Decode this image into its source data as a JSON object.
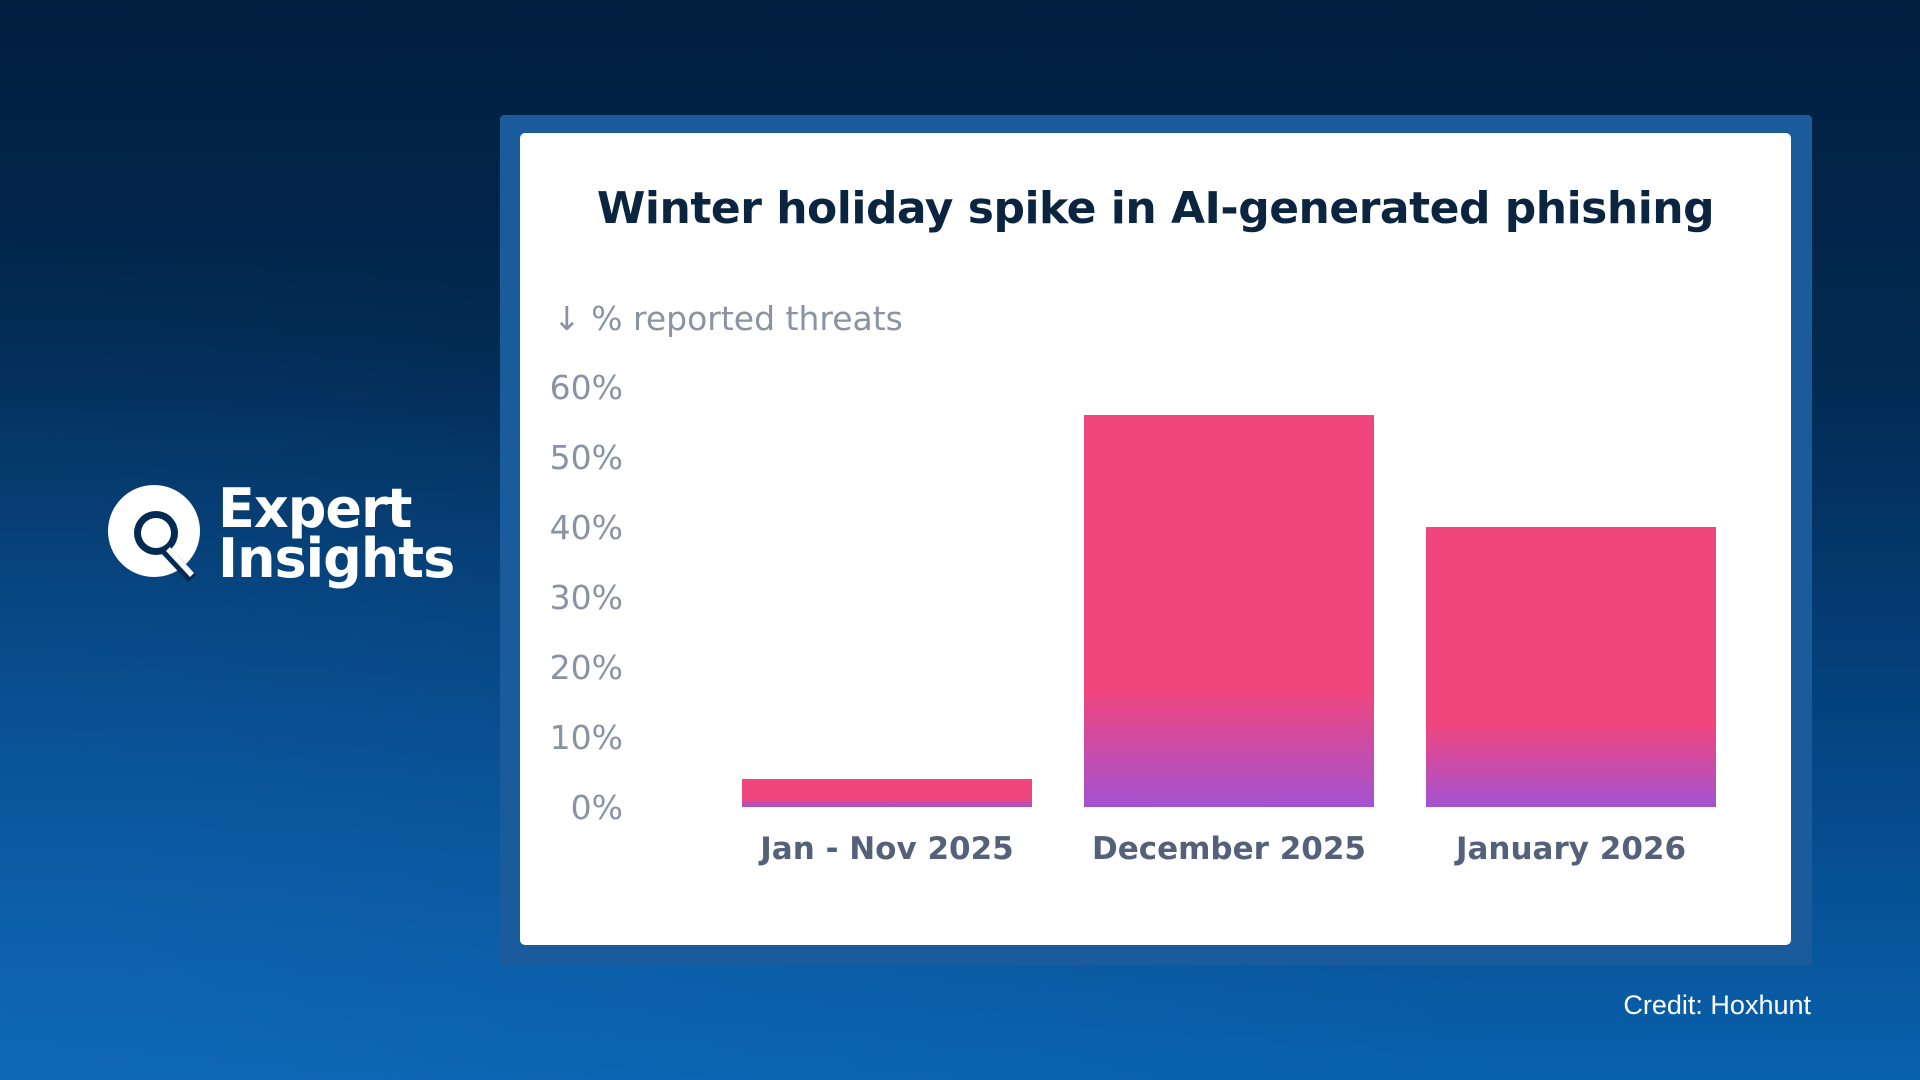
{
  "brand": {
    "line1": "Expert",
    "line2": "Insights"
  },
  "credit": "Credit: Hoxhunt",
  "colors": {
    "bar_top": "#f1467d",
    "bar_bottom": "#a352d1",
    "title": "#0b2540",
    "axis_text": "#8a93a4",
    "category_text": "#55607a"
  },
  "chart_data": {
    "type": "bar",
    "title": "Winter holiday spike in AI-generated phishing",
    "ylabel": "↓ % reported threats",
    "xlabel": "",
    "categories": [
      "Jan - Nov 2025",
      "December 2025",
      "January 2026"
    ],
    "values": [
      4,
      56,
      40
    ],
    "ylim": [
      0,
      60
    ],
    "yticks": [
      0,
      10,
      20,
      30,
      40,
      50,
      60
    ],
    "ytick_labels": [
      "0%",
      "10%",
      "20%",
      "30%",
      "40%",
      "50%",
      "60%"
    ],
    "grid": false,
    "legend": "none"
  }
}
